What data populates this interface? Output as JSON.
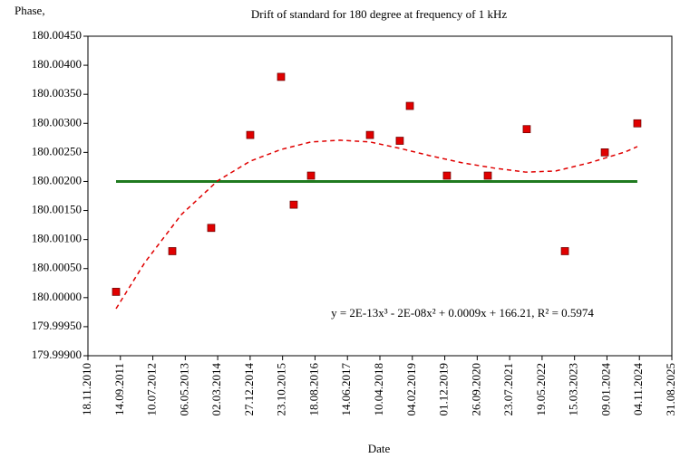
{
  "chart_data": {
    "type": "scatter",
    "title": "Drift of standard for 180 degree at frequency of 1 kHz",
    "y_label": "Phase,",
    "x_label": "Date",
    "annotation": "y = 2E-13x³ - 2E-08x² + 0.0009x + 166.21, R² = 0.5974",
    "xlim": [
      40500,
      45900
    ],
    "xticks": [
      {
        "value": 40500,
        "label": "18.11.2010"
      },
      {
        "value": 40800,
        "label": "14.09.2011"
      },
      {
        "value": 41100,
        "label": "10.07.2012"
      },
      {
        "value": 41400,
        "label": "06.05.2013"
      },
      {
        "value": 41700,
        "label": "02.03.2014"
      },
      {
        "value": 42000,
        "label": "27.12.2014"
      },
      {
        "value": 42300,
        "label": "23.10.2015"
      },
      {
        "value": 42600,
        "label": "18.08.2016"
      },
      {
        "value": 42900,
        "label": "14.06.2017"
      },
      {
        "value": 43200,
        "label": "10.04.2018"
      },
      {
        "value": 43500,
        "label": "04.02.2019"
      },
      {
        "value": 43800,
        "label": "01.12.2019"
      },
      {
        "value": 44100,
        "label": "26.09.2020"
      },
      {
        "value": 44400,
        "label": "23.07.2021"
      },
      {
        "value": 44700,
        "label": "19.05.2022"
      },
      {
        "value": 45000,
        "label": "15.03.2023"
      },
      {
        "value": 45300,
        "label": "09.01.2024"
      },
      {
        "value": 45600,
        "label": "04.11.2024"
      },
      {
        "value": 45900,
        "label": "31.08.2025"
      }
    ],
    "ylim": [
      179.999,
      180.0045
    ],
    "yticks": [
      {
        "value": 180.0045,
        "label": "180.00450"
      },
      {
        "value": 180.004,
        "label": "180.00400"
      },
      {
        "value": 180.0035,
        "label": "180.00350"
      },
      {
        "value": 180.003,
        "label": "180.00300"
      },
      {
        "value": 180.0025,
        "label": "180.00250"
      },
      {
        "value": 180.002,
        "label": "180.00200"
      },
      {
        "value": 180.0015,
        "label": "180.00150"
      },
      {
        "value": 180.001,
        "label": "180.00100"
      },
      {
        "value": 180.0005,
        "label": "180.00050"
      },
      {
        "value": 180,
        "label": "180.00000"
      },
      {
        "value": 179.9995,
        "label": "179.99950"
      },
      {
        "value": 179.999,
        "label": "179.99900"
      }
    ],
    "series": [
      {
        "type": "scatter",
        "color": "#e00000",
        "x": [
          40760,
          41280,
          41640,
          42001,
          42286,
          42403,
          42563,
          43108,
          43384,
          43477,
          43820,
          44198,
          44558,
          44911,
          45280,
          45581
        ],
        "values": [
          180.0001,
          180.0008,
          180.0012,
          180.0028,
          180.0038,
          180.0016,
          180.0021,
          180.0028,
          180.0027,
          180.0033,
          180.0021,
          180.0021,
          180.0029,
          180.0008,
          180.0025,
          180.003
        ]
      },
      {
        "type": "line",
        "color": "#1f7a1f",
        "dashed": false,
        "x": [
          40760,
          45581
        ],
        "values": [
          180.002,
          180.002
        ]
      },
      {
        "type": "line",
        "color": "#e00000",
        "dashed": true,
        "x": [
          40760,
          41028,
          41364,
          41699,
          42001,
          42286,
          42563,
          42831,
          43108,
          43384,
          43670,
          43963,
          44256,
          44550,
          44827,
          45137,
          45472,
          45581
        ],
        "values": [
          179.99981,
          180.00061,
          180.00143,
          180.00201,
          180.00235,
          180.00255,
          180.00268,
          180.00271,
          180.00268,
          180.00257,
          180.00244,
          180.00232,
          180.00223,
          180.00216,
          180.00218,
          180.00232,
          180.00251,
          180.0026
        ]
      }
    ]
  }
}
